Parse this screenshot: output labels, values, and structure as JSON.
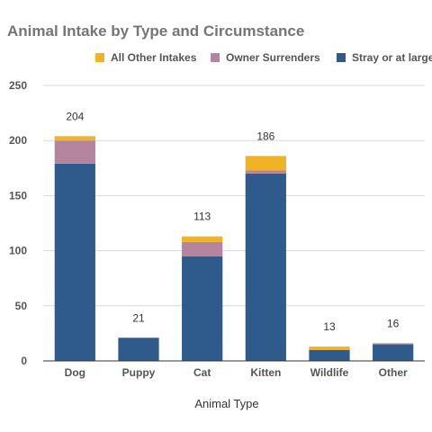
{
  "chart_data": {
    "type": "bar",
    "stacked": true,
    "title": "Animal Intake by Type and Circumstance",
    "xlabel": "Animal Type",
    "ylabel": "",
    "ylim": [
      0,
      250
    ],
    "yticks": [
      0,
      50,
      100,
      150,
      200,
      250
    ],
    "grid": true,
    "legend_position": "top",
    "categories": [
      "Dog",
      "Puppy",
      "Cat",
      "Kitten",
      "Wildlife",
      "Other"
    ],
    "series": [
      {
        "name": "Stray or at large",
        "color": "#2e5a8c",
        "values": [
          179,
          21,
          95,
          170,
          10,
          15
        ]
      },
      {
        "name": "Owner Surrenders",
        "color": "#b5849e",
        "values": [
          21,
          0,
          13,
          3,
          0,
          1
        ]
      },
      {
        "name": "All Other Intakes",
        "color": "#f0b323",
        "values": [
          4,
          0,
          5,
          13,
          3,
          0
        ]
      }
    ],
    "legend_order": [
      "All Other Intakes",
      "Owner Surrenders",
      "Stray or at large"
    ],
    "totals": [
      204,
      21,
      113,
      186,
      13,
      16
    ]
  }
}
